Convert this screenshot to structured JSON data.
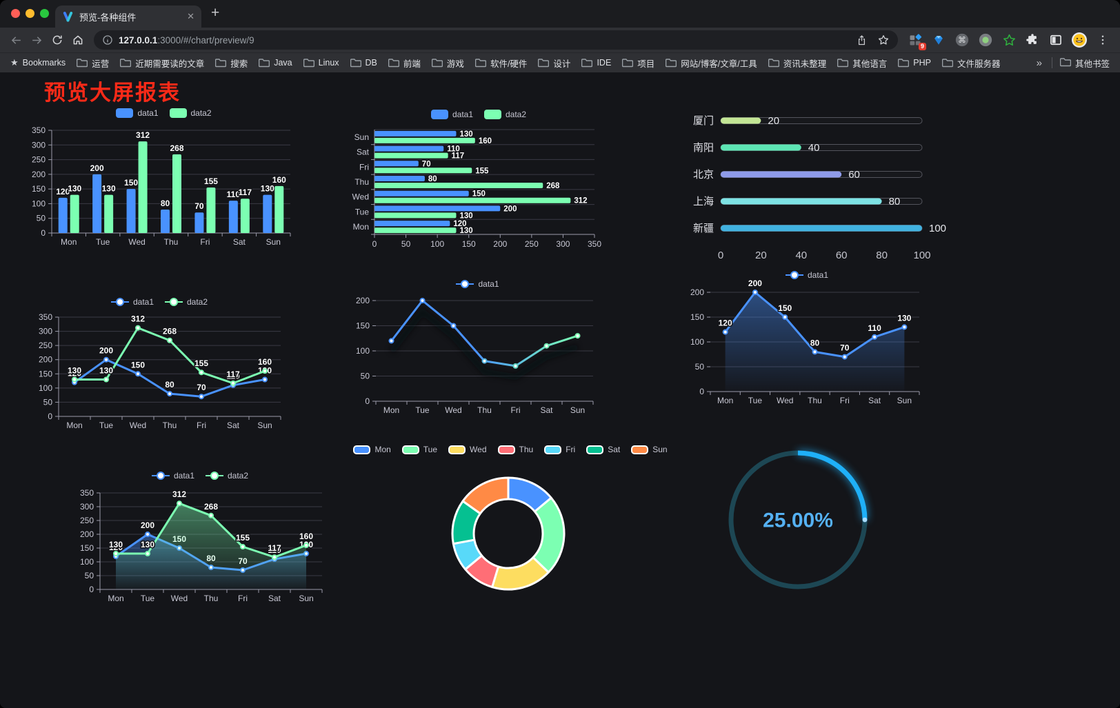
{
  "browser": {
    "tab": {
      "title": "预览-各种组件"
    },
    "glyphs": {
      "close": "✕",
      "new_tab": "+"
    },
    "address": {
      "host": "127.0.0.1",
      "path": ":3000/#/chart/preview/9"
    },
    "ext_badge": "9",
    "bookmarks": {
      "star_label": "Bookmarks",
      "folders": [
        "运营",
        "近期需要读的文章",
        "搜索",
        "Java",
        "Linux",
        "DB",
        "前端",
        "游戏",
        "软件/硬件",
        "设计",
        "IDE",
        "项目",
        "网站/博客/文章/工具",
        "资讯未整理",
        "其他语言",
        "PHP",
        "文件服务器"
      ],
      "overflow": "»",
      "other": "其他书签"
    }
  },
  "page": {
    "title": "预览大屏报表",
    "title_color": "#fa2a18",
    "bg": "#141519"
  },
  "theme": {
    "axis_text": "#c8c8d4",
    "grid_line": "#3a3a45",
    "axis_line": "#9b9bab",
    "value_label": "#ffffff",
    "series_blue": "#4992ff",
    "series_green": "#7cffb2"
  },
  "chart_data": [
    {
      "id": "bar-grouped",
      "type": "bar",
      "legend": [
        "data1",
        "data2"
      ],
      "categories": [
        "Mon",
        "Tue",
        "Wed",
        "Thu",
        "Fri",
        "Sat",
        "Sun"
      ],
      "series": [
        {
          "name": "data1",
          "color": "#4992ff",
          "values": [
            120,
            200,
            150,
            80,
            70,
            110,
            130
          ]
        },
        {
          "name": "data2",
          "color": "#7cffb2",
          "values": [
            130,
            130,
            312,
            268,
            155,
            117,
            160
          ]
        }
      ],
      "ylim": [
        0,
        350
      ],
      "ystep": 50
    },
    {
      "id": "bar-horizontal",
      "type": "bar-horizontal",
      "legend": [
        "data1",
        "data2"
      ],
      "categories": [
        "Mon",
        "Tue",
        "Wed",
        "Thu",
        "Fri",
        "Sat",
        "Sun"
      ],
      "series": [
        {
          "name": "data1",
          "color": "#4992ff",
          "values": [
            120,
            200,
            150,
            80,
            70,
            110,
            130
          ]
        },
        {
          "name": "data2",
          "color": "#7cffb2",
          "values": [
            130,
            130,
            312,
            268,
            155,
            117,
            160
          ]
        }
      ],
      "xlim": [
        0,
        350
      ],
      "xstep": 50
    },
    {
      "id": "progress",
      "type": "progress",
      "xlim": [
        0,
        100
      ],
      "xticks": [
        0,
        20,
        40,
        60,
        80,
        100
      ],
      "rows": [
        {
          "label": "厦门",
          "value": 20,
          "color": "#c3e695"
        },
        {
          "label": "南阳",
          "value": 40,
          "color": "#5de6b4"
        },
        {
          "label": "北京",
          "value": 60,
          "color": "#8f9bea"
        },
        {
          "label": "上海",
          "value": 80,
          "color": "#7de2e4"
        },
        {
          "label": "新疆",
          "value": 100,
          "color": "#41b2e0"
        }
      ]
    },
    {
      "id": "line-dual",
      "type": "line",
      "legend": [
        "data1",
        "data2"
      ],
      "categories": [
        "Mon",
        "Tue",
        "Wed",
        "Thu",
        "Fri",
        "Sat",
        "Sun"
      ],
      "series": [
        {
          "name": "data1",
          "color": "#4992ff",
          "values": [
            120,
            200,
            150,
            80,
            70,
            110,
            130
          ]
        },
        {
          "name": "data2",
          "color": "#7cffb2",
          "values": [
            130,
            130,
            312,
            268,
            155,
            117,
            160
          ]
        }
      ],
      "ylim": [
        0,
        350
      ],
      "ystep": 50,
      "point_labels": true,
      "full_y_axis": true
    },
    {
      "id": "line-gradient",
      "type": "line",
      "legend": [
        "data1"
      ],
      "categories": [
        "Mon",
        "Tue",
        "Wed",
        "Thu",
        "Fri",
        "Sat",
        "Sun"
      ],
      "series": [
        {
          "name": "data1",
          "color": "#4992ff",
          "color_end": "#7cffb2",
          "gradient": true,
          "values": [
            120,
            200,
            150,
            80,
            70,
            110,
            130
          ]
        }
      ],
      "ylim": [
        0,
        200
      ],
      "ystep": 50,
      "point_labels": false,
      "full_y_axis": false,
      "shadow": true
    },
    {
      "id": "line-area",
      "type": "line",
      "legend": [
        "data1"
      ],
      "categories": [
        "Mon",
        "Tue",
        "Wed",
        "Thu",
        "Fri",
        "Sat",
        "Sun"
      ],
      "series": [
        {
          "name": "data1",
          "color": "#4992ff",
          "area": true,
          "values": [
            120,
            200,
            150,
            80,
            70,
            110,
            130
          ]
        }
      ],
      "ylim": [
        0,
        200
      ],
      "ystep": 50,
      "point_labels": true,
      "full_y_axis": false
    },
    {
      "id": "line-dual-area",
      "type": "line",
      "legend": [
        "data1",
        "data2"
      ],
      "categories": [
        "Mon",
        "Tue",
        "Wed",
        "Thu",
        "Fri",
        "Sat",
        "Sun"
      ],
      "series": [
        {
          "name": "data1",
          "color": "#4992ff",
          "area": true,
          "values": [
            120,
            200,
            150,
            80,
            70,
            110,
            130
          ]
        },
        {
          "name": "data2",
          "color": "#7cffb2",
          "area": true,
          "values": [
            130,
            130,
            312,
            268,
            155,
            117,
            160
          ]
        }
      ],
      "ylim": [
        0,
        350
      ],
      "ystep": 50,
      "point_labels": true,
      "full_y_axis": true
    },
    {
      "id": "donut",
      "type": "pie",
      "slices": [
        {
          "label": "Mon",
          "value": 120,
          "color": "#4992ff"
        },
        {
          "label": "Tue",
          "value": 200,
          "color": "#7cffb2"
        },
        {
          "label": "Wed",
          "value": 150,
          "color": "#fddd60"
        },
        {
          "label": "Thu",
          "value": 80,
          "color": "#ff6e76"
        },
        {
          "label": "Fri",
          "value": 70,
          "color": "#58d9f9"
        },
        {
          "label": "Sat",
          "value": 110,
          "color": "#05c091"
        },
        {
          "label": "Sun",
          "value": 130,
          "color": "#ff8a45"
        }
      ]
    },
    {
      "id": "gauge",
      "type": "gauge",
      "value": 25,
      "max": 100,
      "label": "25.00%",
      "color": "#1fb0f8",
      "track_color": "#1d4754",
      "text_color": "#55b1f3"
    }
  ]
}
